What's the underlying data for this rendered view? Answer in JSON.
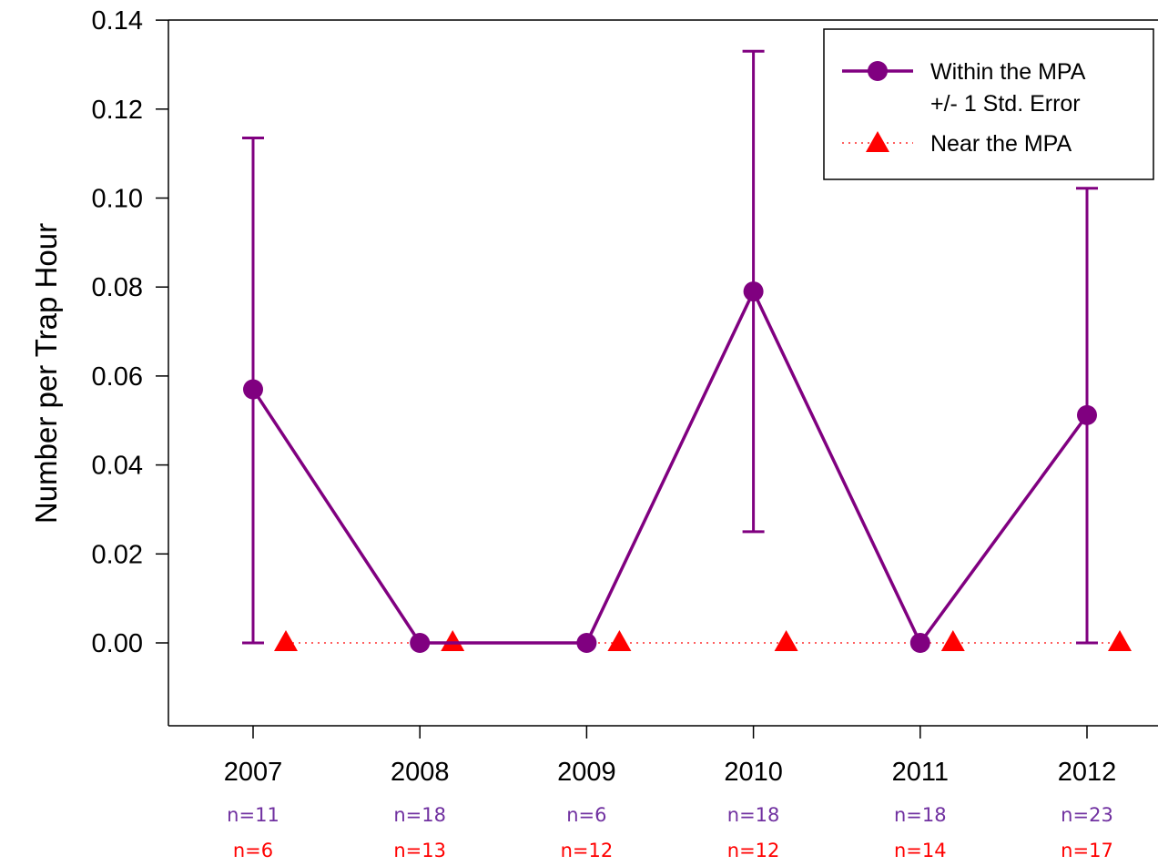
{
  "chart_data": {
    "type": "line",
    "title": "",
    "xlabel": "",
    "ylabel": "Number per Trap Hour",
    "ylim": [
      -0.02,
      0.14
    ],
    "yticks": [
      "0.00",
      "0.02",
      "0.04",
      "0.06",
      "0.08",
      "0.10",
      "0.12",
      "0.14"
    ],
    "ytick_values": [
      0.0,
      0.02,
      0.04,
      0.06,
      0.08,
      0.1,
      0.12,
      0.14
    ],
    "categories": [
      "2007",
      "2008",
      "2009",
      "2010",
      "2011",
      "2012"
    ],
    "grid": false,
    "legend_position": "top-right",
    "series": [
      {
        "name": "Within the MPA",
        "color": "#800080",
        "marker": "circle",
        "line": "solid",
        "values": [
          0.057,
          0.0,
          0.0,
          0.079,
          0.0,
          0.0512
        ],
        "error_lower": [
          0.0,
          null,
          null,
          0.025,
          null,
          0.0
        ],
        "error_upper": [
          0.1135,
          null,
          null,
          0.133,
          null,
          0.1022
        ],
        "n_labels": [
          "n=11",
          "n=18",
          "n=6",
          "n=18",
          "n=18",
          "n=23"
        ]
      },
      {
        "name": "Near the MPA",
        "color": "#ff0000",
        "marker": "triangle",
        "line": "dotted",
        "values": [
          0.0,
          0.0,
          0.0,
          0.0,
          0.0,
          0.0
        ],
        "n_labels": [
          "n=6",
          "n=13",
          "n=12",
          "n=12",
          "n=14",
          "n=17"
        ]
      }
    ],
    "legend": {
      "entries": [
        "Within the MPA",
        "+/- 1 Std. Error",
        "Near the MPA"
      ]
    }
  }
}
